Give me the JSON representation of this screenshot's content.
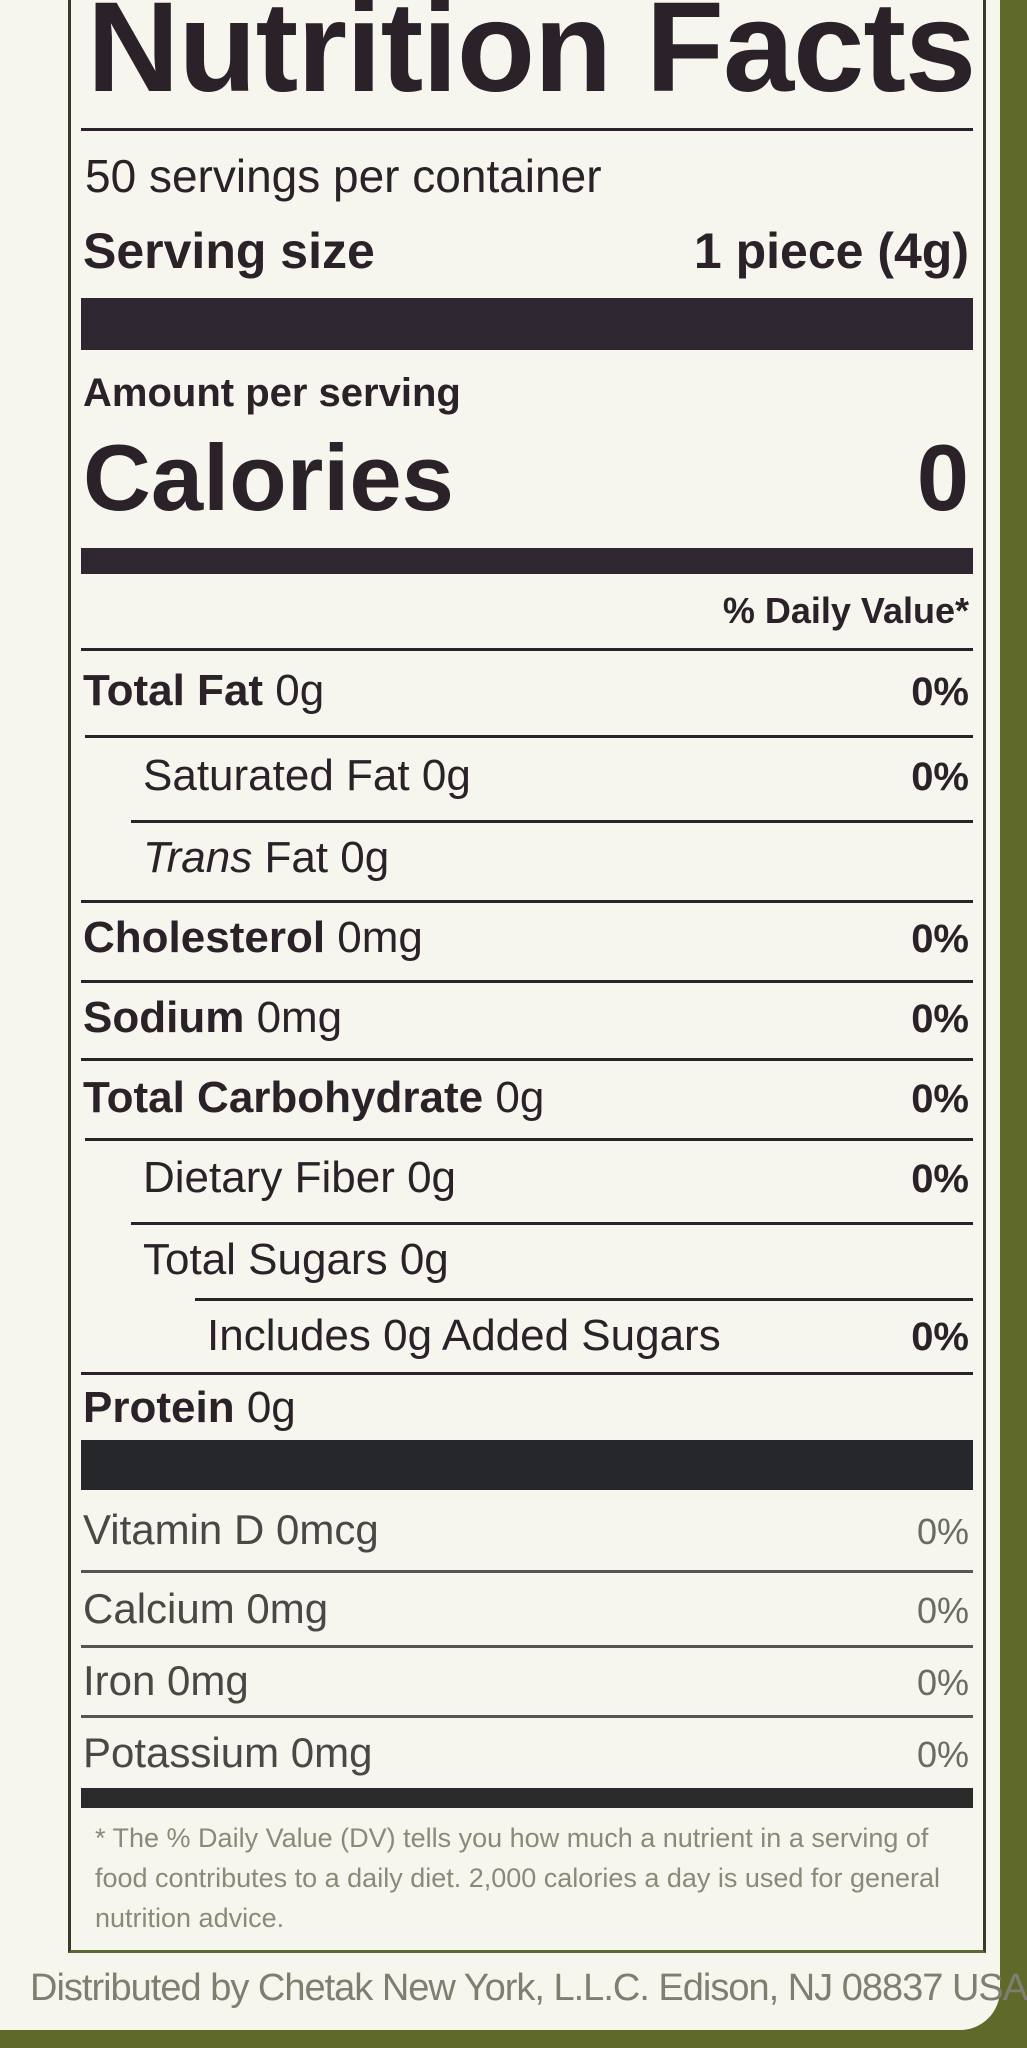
{
  "title": "Nutrition Facts",
  "servings_per_container": "50 servings per container",
  "serving_size_label": "Serving size",
  "serving_size_value": "1 piece (4g)",
  "amount_per_serving": "Amount per serving",
  "calories_label": "Calories",
  "calories_value": "0",
  "dv_header": "% Daily Value*",
  "nutrients": [
    {
      "name": "Total Fat",
      "amount": "0g",
      "dv": "0%"
    },
    {
      "name": "Saturated Fat",
      "amount": "0g",
      "dv": "0%"
    },
    {
      "name": "Trans",
      "name_suffix": " Fat",
      "amount": "0g",
      "dv": ""
    },
    {
      "name": "Cholesterol",
      "amount": "0mg",
      "dv": "0%"
    },
    {
      "name": "Sodium",
      "amount": "0mg",
      "dv": "0%"
    },
    {
      "name": "Total Carbohydrate",
      "amount": "0g",
      "dv": "0%"
    },
    {
      "name": "Dietary Fiber",
      "amount": "0g",
      "dv": "0%"
    },
    {
      "name": "Total Sugars",
      "amount": "0g",
      "dv": ""
    },
    {
      "name": "Includes 0g Added Sugars",
      "amount": "",
      "dv": "0%"
    },
    {
      "name": "Protein",
      "amount": "0g",
      "dv": ""
    }
  ],
  "vitamins": [
    {
      "name": "Vitamin D",
      "amount": "0mcg",
      "dv": "0%"
    },
    {
      "name": "Calcium",
      "amount": "0mg",
      "dv": "0%"
    },
    {
      "name": "Iron",
      "amount": "0mg",
      "dv": "0%"
    },
    {
      "name": "Potassium",
      "amount": "0mg",
      "dv": "0%"
    }
  ],
  "footnote": "* The % Daily Value (DV) tells you how much a nutrient in a serving of food contributes to a daily diet. 2,000 calories a day is used for general nutrition advice.",
  "distributor": "Distributed by Chetak New York, L.L.C. Edison, NJ 08837 USA",
  "colors": {
    "ink": "#2a2228",
    "paper": "#f6f6ee",
    "package": "#5f6a2a"
  }
}
